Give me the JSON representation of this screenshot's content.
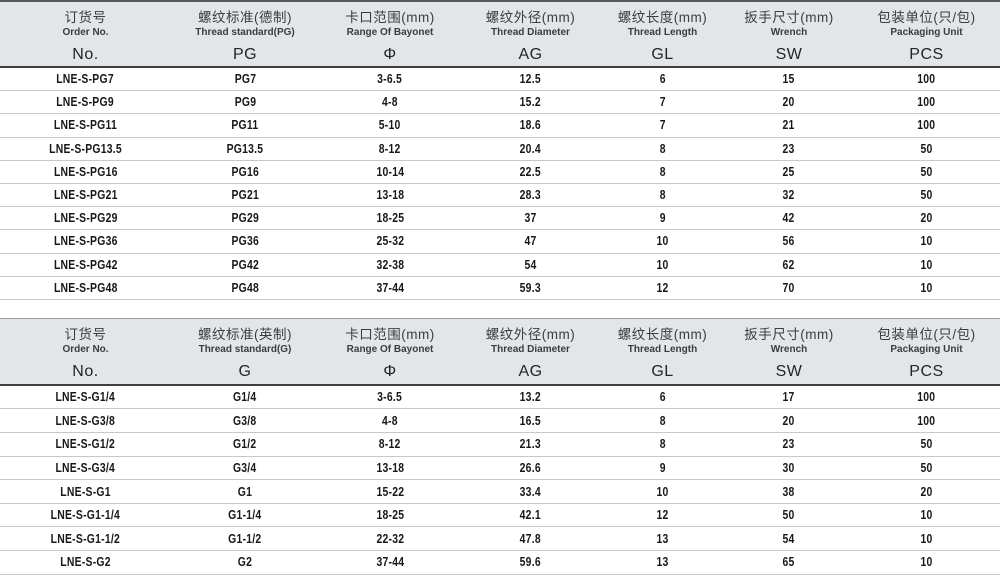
{
  "colors": {
    "header_bg": "#e3e5e9",
    "header_top_border_heavy": "#55585c",
    "header_top_border_light": "#9ba0a5",
    "header_bottom_border": "#3c3e41",
    "row_divider": "#c6c9cc",
    "header_text": "#3a3d41",
    "data_text": "#17181a"
  },
  "tables": [
    {
      "id": "pg",
      "name": "pg-thread-spec-table",
      "columns": [
        {
          "key": "order-no",
          "zh": "订货号",
          "en": "Order No.",
          "code": "No."
        },
        {
          "key": "thread-standard-pg",
          "zh": "螺纹标准(德制)",
          "en": "Thread standard(PG)",
          "code": "PG"
        },
        {
          "key": "bayonet-range",
          "zh": "卡口范围(mm)",
          "en": "Range Of Bayonet",
          "code": "Φ"
        },
        {
          "key": "thread-diameter",
          "zh": "螺纹外径(mm)",
          "en": "Thread Diameter",
          "code": "AG"
        },
        {
          "key": "thread-length",
          "zh": "螺纹长度(mm)",
          "en": "Thread Length",
          "code": "GL"
        },
        {
          "key": "wrench-size",
          "zh": "扳手尺寸(mm)",
          "en": "Wrench",
          "code": "SW"
        },
        {
          "key": "packaging-unit",
          "zh": "包装单位(只/包)",
          "en": "Packaging Unit",
          "code": "PCS"
        }
      ],
      "rows": [
        [
          "LNE-S-PG7",
          "PG7",
          "3-6.5",
          "12.5",
          "6",
          "15",
          "100"
        ],
        [
          "LNE-S-PG9",
          "PG9",
          "4-8",
          "15.2",
          "7",
          "20",
          "100"
        ],
        [
          "LNE-S-PG11",
          "PG11",
          "5-10",
          "18.6",
          "7",
          "21",
          "100"
        ],
        [
          "LNE-S-PG13.5",
          "PG13.5",
          "8-12",
          "20.4",
          "8",
          "23",
          "50"
        ],
        [
          "LNE-S-PG16",
          "PG16",
          "10-14",
          "22.5",
          "8",
          "25",
          "50"
        ],
        [
          "LNE-S-PG21",
          "PG21",
          "13-18",
          "28.3",
          "8",
          "32",
          "50"
        ],
        [
          "LNE-S-PG29",
          "PG29",
          "18-25",
          "37",
          "9",
          "42",
          "20"
        ],
        [
          "LNE-S-PG36",
          "PG36",
          "25-32",
          "47",
          "10",
          "56",
          "10"
        ],
        [
          "LNE-S-PG42",
          "PG42",
          "32-38",
          "54",
          "10",
          "62",
          "10"
        ],
        [
          "LNE-S-PG48",
          "PG48",
          "37-44",
          "59.3",
          "12",
          "70",
          "10"
        ]
      ]
    },
    {
      "id": "g",
      "name": "g-thread-spec-table",
      "columns": [
        {
          "key": "order-no",
          "zh": "订货号",
          "en": "Order No.",
          "code": "No."
        },
        {
          "key": "thread-standard-g",
          "zh": "螺纹标准(英制)",
          "en": "Thread standard(G)",
          "code": "G"
        },
        {
          "key": "bayonet-range",
          "zh": "卡口范围(mm)",
          "en": "Range Of Bayonet",
          "code": "Φ"
        },
        {
          "key": "thread-diameter",
          "zh": "螺纹外径(mm)",
          "en": "Thread Diameter",
          "code": "AG"
        },
        {
          "key": "thread-length",
          "zh": "螺纹长度(mm)",
          "en": "Thread Length",
          "code": "GL"
        },
        {
          "key": "wrench-size",
          "zh": "扳手尺寸(mm)",
          "en": "Wrench",
          "code": "SW"
        },
        {
          "key": "packaging-unit",
          "zh": "包装单位(只/包)",
          "en": "Packaging Unit",
          "code": "PCS"
        }
      ],
      "rows": [
        [
          "LNE-S-G1/4",
          "G1/4",
          "3-6.5",
          "13.2",
          "6",
          "17",
          "100"
        ],
        [
          "LNE-S-G3/8",
          "G3/8",
          "4-8",
          "16.5",
          "8",
          "20",
          "100"
        ],
        [
          "LNE-S-G1/2",
          "G1/2",
          "8-12",
          "21.3",
          "8",
          "23",
          "50"
        ],
        [
          "LNE-S-G3/4",
          "G3/4",
          "13-18",
          "26.6",
          "9",
          "30",
          "50"
        ],
        [
          "LNE-S-G1",
          "G1",
          "15-22",
          "33.4",
          "10",
          "38",
          "20"
        ],
        [
          "LNE-S-G1-1/4",
          "G1-1/4",
          "18-25",
          "42.1",
          "12",
          "50",
          "10"
        ],
        [
          "LNE-S-G1-1/2",
          "G1-1/2",
          "22-32",
          "47.8",
          "13",
          "54",
          "10"
        ],
        [
          "LNE-S-G2",
          "G2",
          "37-44",
          "59.6",
          "13",
          "65",
          "10"
        ]
      ]
    }
  ]
}
